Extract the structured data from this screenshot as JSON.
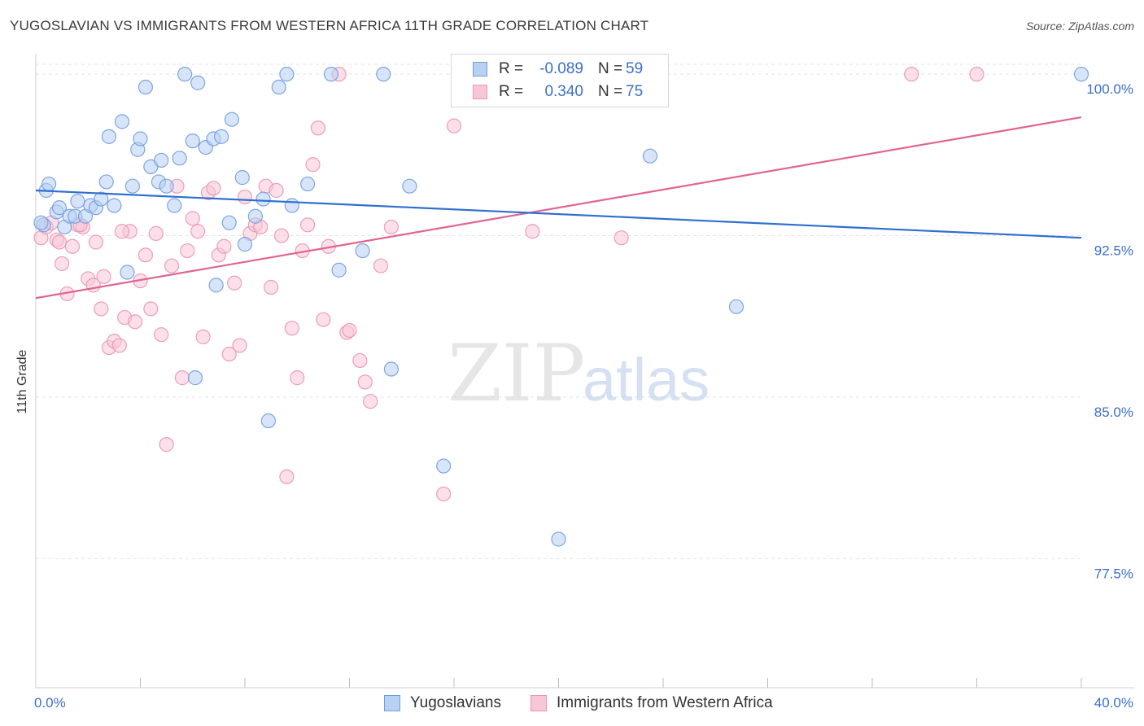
{
  "title": "YUGOSLAVIAN VS IMMIGRANTS FROM WESTERN AFRICA 11TH GRADE CORRELATION CHART",
  "source": "Source: ZipAtlas.com",
  "watermark": {
    "zip": "ZIP",
    "atlas": "atlas"
  },
  "stats": [
    {
      "label": "R =",
      "r": "-0.089",
      "n_label": "N =",
      "n": "59",
      "fill": "#b8d0f2",
      "stroke": "#6f9de0"
    },
    {
      "label": "R =",
      "r": "0.340",
      "n_label": "N =",
      "n": "75",
      "fill": "#f8c7d7",
      "stroke": "#ec93b1"
    }
  ],
  "legend": [
    {
      "label": "Yugoslavians",
      "fill": "#b8d0f2",
      "stroke": "#6f9de0"
    },
    {
      "label": "Immigrants from Western Africa",
      "fill": "#f8c7d7",
      "stroke": "#ec93b1"
    }
  ],
  "chart_data": {
    "type": "scatter",
    "xlabel": "",
    "ylabel": "11th Grade",
    "xlim": [
      0,
      40
    ],
    "ylim": [
      71.5,
      100.8
    ],
    "x_tick_labels": [
      {
        "value": 0,
        "label": "0.0%"
      },
      {
        "value": 40,
        "label": "40.0%"
      }
    ],
    "x_minor_ticks": [
      4,
      8,
      12,
      16,
      20,
      24,
      28,
      32,
      36,
      40
    ],
    "y_ticks": [
      {
        "value": 100,
        "label": "100.0%"
      },
      {
        "value": 92.5,
        "label": "92.5%"
      },
      {
        "value": 85,
        "label": "85.0%"
      },
      {
        "value": 77.5,
        "label": "77.5%"
      }
    ],
    "grid": true,
    "colors": {
      "blue_line": "#2f6fcf",
      "pink_line": "#e06590",
      "blue_fill": "#b8d0f2",
      "blue_stroke": "#6f9de0",
      "pink_fill": "#f8c7d7",
      "pink_stroke": "#ec93b1",
      "tick_label": "#3b6fc9"
    },
    "series": [
      {
        "name": "Yugoslavians",
        "trend": {
          "x": [
            0,
            40
          ],
          "y": [
            94.6,
            92.4
          ]
        },
        "points": [
          [
            0.3,
            93.0
          ],
          [
            0.4,
            94.6
          ],
          [
            0.5,
            94.9
          ],
          [
            0.8,
            93.6
          ],
          [
            0.9,
            93.8
          ],
          [
            1.1,
            92.9
          ],
          [
            1.3,
            93.4
          ],
          [
            1.5,
            93.4
          ],
          [
            1.6,
            94.1
          ],
          [
            1.9,
            93.4
          ],
          [
            2.1,
            93.9
          ],
          [
            2.3,
            93.8
          ],
          [
            2.5,
            94.2
          ],
          [
            2.7,
            95.0
          ],
          [
            2.8,
            97.1
          ],
          [
            3.0,
            93.9
          ],
          [
            3.3,
            97.8
          ],
          [
            3.5,
            90.8
          ],
          [
            3.7,
            94.8
          ],
          [
            3.9,
            96.5
          ],
          [
            4.0,
            97.0
          ],
          [
            4.2,
            99.4
          ],
          [
            4.4,
            95.7
          ],
          [
            4.7,
            95.0
          ],
          [
            4.8,
            96.0
          ],
          [
            5.0,
            94.8
          ],
          [
            5.3,
            93.9
          ],
          [
            5.5,
            96.1
          ],
          [
            5.7,
            100.0
          ],
          [
            6.0,
            96.9
          ],
          [
            6.1,
            85.9
          ],
          [
            6.2,
            99.6
          ],
          [
            6.5,
            96.6
          ],
          [
            6.8,
            97.0
          ],
          [
            6.9,
            90.2
          ],
          [
            7.1,
            97.1
          ],
          [
            7.4,
            93.1
          ],
          [
            7.5,
            97.9
          ],
          [
            7.9,
            95.2
          ],
          [
            8.0,
            92.1
          ],
          [
            8.4,
            93.4
          ],
          [
            8.7,
            94.2
          ],
          [
            8.9,
            83.9
          ],
          [
            9.3,
            99.4
          ],
          [
            9.6,
            100.0
          ],
          [
            9.8,
            93.9
          ],
          [
            10.4,
            94.9
          ],
          [
            11.3,
            100.0
          ],
          [
            11.6,
            90.9
          ],
          [
            12.5,
            91.8
          ],
          [
            13.3,
            100.0
          ],
          [
            13.6,
            86.3
          ],
          [
            14.3,
            94.8
          ],
          [
            15.6,
            81.8
          ],
          [
            20.0,
            78.4
          ],
          [
            23.5,
            96.2
          ],
          [
            26.8,
            89.2
          ],
          [
            40.0,
            100.0
          ],
          [
            0.2,
            93.1
          ]
        ]
      },
      {
        "name": "Immigrants from Western Africa",
        "trend": {
          "x": [
            0,
            40
          ],
          "y": [
            89.6,
            98.0
          ]
        },
        "points": [
          [
            0.2,
            92.4
          ],
          [
            0.4,
            92.9
          ],
          [
            0.6,
            93.1
          ],
          [
            0.8,
            92.3
          ],
          [
            0.9,
            92.2
          ],
          [
            1.0,
            91.2
          ],
          [
            1.2,
            89.8
          ],
          [
            1.4,
            92.0
          ],
          [
            1.6,
            93.0
          ],
          [
            1.8,
            92.9
          ],
          [
            2.0,
            90.5
          ],
          [
            2.2,
            90.2
          ],
          [
            2.3,
            92.2
          ],
          [
            2.5,
            89.1
          ],
          [
            2.6,
            90.6
          ],
          [
            2.8,
            87.3
          ],
          [
            3.0,
            87.6
          ],
          [
            3.2,
            87.4
          ],
          [
            3.4,
            88.7
          ],
          [
            3.6,
            92.7
          ],
          [
            3.8,
            88.5
          ],
          [
            4.0,
            90.4
          ],
          [
            4.2,
            91.6
          ],
          [
            4.4,
            89.1
          ],
          [
            4.6,
            92.6
          ],
          [
            4.8,
            87.9
          ],
          [
            5.0,
            82.8
          ],
          [
            5.2,
            91.1
          ],
          [
            5.4,
            94.8
          ],
          [
            5.6,
            85.9
          ],
          [
            5.8,
            91.8
          ],
          [
            6.0,
            93.3
          ],
          [
            6.2,
            92.7
          ],
          [
            6.4,
            87.8
          ],
          [
            6.6,
            94.5
          ],
          [
            6.8,
            94.7
          ],
          [
            7.0,
            91.6
          ],
          [
            7.2,
            92.0
          ],
          [
            7.4,
            87.0
          ],
          [
            7.6,
            90.3
          ],
          [
            7.8,
            87.4
          ],
          [
            8.0,
            94.3
          ],
          [
            8.2,
            92.6
          ],
          [
            8.4,
            93.0
          ],
          [
            8.6,
            92.9
          ],
          [
            8.8,
            94.8
          ],
          [
            9.0,
            90.1
          ],
          [
            9.2,
            94.6
          ],
          [
            9.4,
            92.5
          ],
          [
            9.6,
            81.3
          ],
          [
            9.8,
            88.2
          ],
          [
            10.0,
            85.9
          ],
          [
            10.2,
            91.8
          ],
          [
            10.4,
            93.0
          ],
          [
            10.6,
            95.8
          ],
          [
            10.8,
            97.5
          ],
          [
            11.0,
            88.6
          ],
          [
            11.2,
            92.0
          ],
          [
            11.6,
            100.0
          ],
          [
            11.9,
            88.0
          ],
          [
            12.0,
            88.1
          ],
          [
            12.4,
            86.7
          ],
          [
            12.6,
            85.7
          ],
          [
            12.8,
            84.8
          ],
          [
            13.2,
            91.1
          ],
          [
            13.6,
            92.9
          ],
          [
            15.6,
            80.5
          ],
          [
            16.0,
            97.6
          ],
          [
            18.0,
            100.0
          ],
          [
            19.0,
            92.7
          ],
          [
            22.4,
            92.4
          ],
          [
            33.5,
            100.0
          ],
          [
            36.0,
            100.0
          ],
          [
            1.7,
            93.0
          ],
          [
            3.3,
            92.7
          ]
        ]
      }
    ]
  }
}
